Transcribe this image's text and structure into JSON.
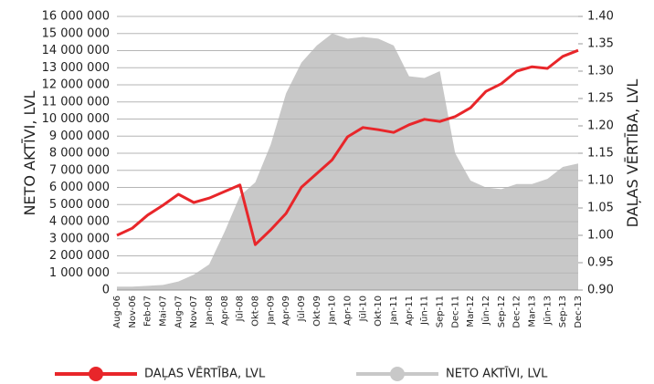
{
  "chart_data": {
    "type": "line",
    "categories": [
      "Aug-06",
      "Nov-06",
      "Feb-07",
      "Mai-07",
      "Aug-07",
      "Nov-07",
      "Jan-08",
      "Apr-08",
      "Jūl-08",
      "Okt-08",
      "Jan-09",
      "Apr-09",
      "Jūl-09",
      "Okt-09",
      "Jan-10",
      "Apr-10",
      "Jūl-10",
      "Okt-10",
      "Jan-11",
      "Apr-11",
      "Jūn-11",
      "Sep-11",
      "Dec-11",
      "Mar-12",
      "Jūn-12",
      "Sep-12",
      "Dec-12",
      "Mar-13",
      "Jūn-13",
      "Sep-13",
      "Dec-13"
    ],
    "series": [
      {
        "name": "DAĻAS VĒRTĪBA, LVL",
        "color": "#e8262a",
        "type": "line",
        "axis": "y2",
        "values": [
          1.0,
          1.013,
          1.037,
          1.055,
          1.075,
          1.06,
          1.068,
          1.08,
          1.092,
          0.983,
          1.01,
          1.04,
          1.088,
          1.113,
          1.138,
          1.18,
          1.197,
          1.193,
          1.188,
          1.202,
          1.212,
          1.208,
          1.217,
          1.233,
          1.263,
          1.277,
          1.3,
          1.308,
          1.305,
          1.327,
          1.338
        ]
      },
      {
        "name": "NETO AKTĪVI, LVL",
        "color": "#c8c8c8",
        "type": "area",
        "axis": "y",
        "values": [
          200000,
          200000,
          250000,
          300000,
          500000,
          900000,
          1500000,
          3400000,
          5500000,
          6300000,
          8500000,
          11500000,
          13300000,
          14300000,
          15000000,
          14700000,
          14800000,
          14700000,
          14300000,
          12500000,
          12400000,
          12800000,
          8000000,
          6400000,
          6000000,
          5900000,
          6200000,
          6200000,
          6500000,
          7200000,
          7400000
        ]
      }
    ],
    "ylabel": "NETO AKTĪVI, LVL",
    "y2label": "DAĻAS VĒRTĪBA, LVL",
    "ylim": [
      0,
      16000000
    ],
    "yticks": [
      0,
      {
        "value": 1000000,
        "label": "1 000 000"
      },
      {
        "value": 2000000,
        "label": "2 000 000"
      },
      {
        "value": 3000000,
        "label": "3 000 000"
      },
      {
        "value": 4000000,
        "label": "4 000 000"
      },
      {
        "value": 5000000,
        "label": "5 000 000"
      },
      {
        "value": 6000000,
        "label": "6 000 000"
      },
      {
        "value": 7000000,
        "label": "7 000 000"
      },
      {
        "value": 8000000,
        "label": "8 000 000"
      },
      {
        "value": 9000000,
        "label": "9 000 000"
      },
      {
        "value": 10000000,
        "label": "10 000 000"
      },
      {
        "value": 11000000,
        "label": "11 000 000"
      },
      {
        "value": 12000000,
        "label": "12 000 000"
      },
      {
        "value": 13000000,
        "label": "13 000 000"
      },
      {
        "value": 14000000,
        "label": "14 000 000"
      },
      {
        "value": 15000000,
        "label": "15 000 000"
      },
      {
        "value": 16000000,
        "label": "16 000 000"
      }
    ],
    "y2lim": [
      0.9,
      1.4
    ],
    "y2ticks": [
      {
        "value": 0.9,
        "label": "0.90"
      },
      0.95,
      {
        "value": 1.0,
        "label": "1.00"
      },
      1.05,
      {
        "value": 1.1,
        "label": "1.10"
      },
      1.15,
      {
        "value": 1.2,
        "label": "1.20"
      },
      1.25,
      {
        "value": 1.3,
        "label": "1.30"
      },
      1.35,
      {
        "value": 1.4,
        "label": "1.40"
      }
    ],
    "grid": true,
    "legend": "bottom"
  }
}
